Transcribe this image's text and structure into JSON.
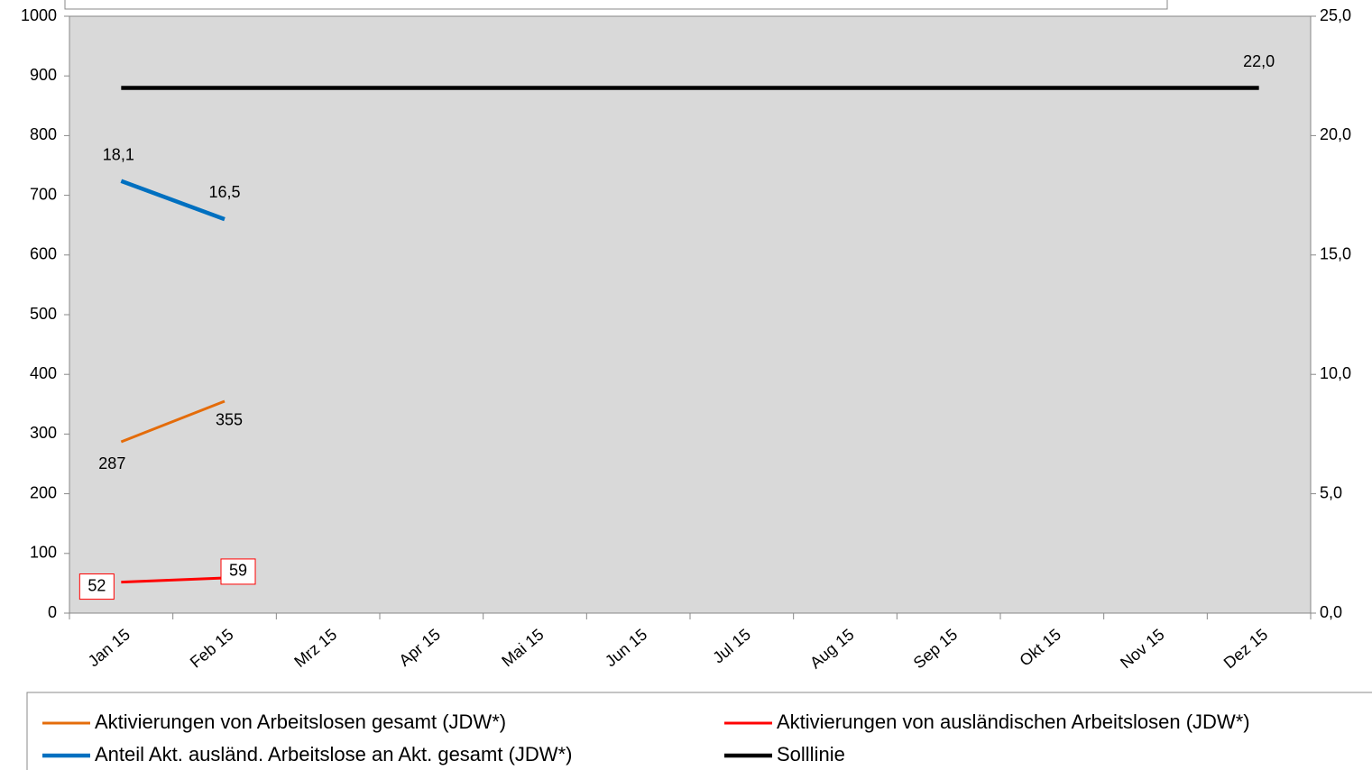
{
  "chart_data": {
    "type": "line",
    "categories": [
      "Jan 15",
      "Feb 15",
      "Mrz 15",
      "Apr 15",
      "Mai 15",
      "Jun 15",
      "Jul 15",
      "Aug 15",
      "Sep 15",
      "Okt 15",
      "Nov 15",
      "Dez 15"
    ],
    "ylim": [
      0,
      1000
    ],
    "yticks": [
      0,
      100,
      200,
      300,
      400,
      500,
      600,
      700,
      800,
      900,
      1000
    ],
    "y2lim": [
      0,
      25
    ],
    "y2ticks": [
      {
        "value": 0,
        "label": "0,0"
      },
      {
        "value": 5,
        "label": "5,0"
      },
      {
        "value": 10,
        "label": "10,0"
      },
      {
        "value": 15,
        "label": "15,0"
      },
      {
        "value": 20,
        "label": "20,0"
      },
      {
        "value": 25,
        "label": "25,0"
      }
    ],
    "series": [
      {
        "name": "Aktivierungen von Arbeitslosen gesamt (JDW*)",
        "color": "#e46c0a",
        "values": [
          287,
          355,
          null,
          null,
          null,
          null,
          null,
          null,
          null,
          null,
          null,
          null
        ]
      },
      {
        "name": "Aktivierungen von ausländischen Arbeitslosen (JDW*)",
        "color": "#ff0000",
        "values": [
          52,
          59,
          null,
          null,
          null,
          null,
          null,
          null,
          null,
          null,
          null,
          null
        ]
      },
      {
        "name": "Anteil Akt. ausländ. Arbeitslose an Akt. gesamt (JDW*)",
        "color": "#0070c0",
        "axis": "y2",
        "values": [
          18.1,
          16.5,
          null,
          null,
          null,
          null,
          null,
          null,
          null,
          null,
          null,
          null
        ],
        "value_labels": [
          "18,1",
          "16,5",
          null,
          null,
          null,
          null,
          null,
          null,
          null,
          null,
          null,
          null
        ]
      },
      {
        "name": "Solllinie",
        "color": "#000000",
        "axis": "y2",
        "values": [
          22.0,
          22.0,
          22.0,
          22.0,
          22.0,
          22.0,
          22.0,
          22.0,
          22.0,
          22.0,
          22.0,
          22.0
        ],
        "value_labels": [
          null,
          null,
          null,
          null,
          null,
          null,
          null,
          null,
          null,
          null,
          null,
          "22,0"
        ]
      }
    ]
  }
}
